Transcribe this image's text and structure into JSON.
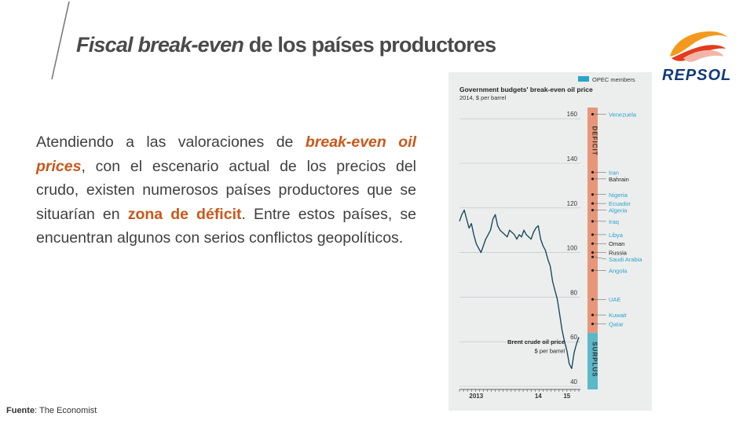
{
  "header": {
    "title_italic": "Fiscal break-even",
    "title_rest": " de los países productores"
  },
  "logo": {
    "wordmark": "REPSOL",
    "colors": {
      "orange": "#f08a1c",
      "red": "#d9251d",
      "blue": "#123a7a"
    }
  },
  "body": {
    "segments": [
      {
        "text": "Atendiendo a las valoraciones de ",
        "style": "normal"
      },
      {
        "text": "break-even oil prices",
        "style": "orange-italic"
      },
      {
        "text": ", con el escenario actual de los precios del crudo, existen numerosos países productores que se situarían en ",
        "style": "normal"
      },
      {
        "text": "zona de déficit",
        "style": "orange"
      },
      {
        "text": ". Entre estos países, se encuentran algunos con serios conflictos geopolíticos.",
        "style": "normal"
      }
    ]
  },
  "source": {
    "label": "Fuente",
    "text": ": The Economist"
  },
  "colors": {
    "title": "#4a4a4a",
    "accent": "#c8581a",
    "deficit": "#e8967a",
    "surplus": "#5bb8c8",
    "opec": "#2ea3c9",
    "line": "#1d4a5a"
  },
  "chart_data": {
    "type": "line",
    "title": "Government budgets' break-even oil price",
    "subtitle": "2014, $ per barrel",
    "legend": "OPEC members",
    "legend_placement": "top-right",
    "ylim": [
      40,
      165
    ],
    "yticks": [
      40,
      60,
      80,
      100,
      120,
      140,
      160
    ],
    "xticks": [
      {
        "label": "2013",
        "t": 0.14
      },
      {
        "label": "14",
        "t": 0.66
      },
      {
        "label": "15",
        "t": 0.9
      }
    ],
    "series": [
      {
        "name": "Brent crude oil price",
        "unit": "$ per barrel",
        "points": [
          [
            0,
            114
          ],
          [
            0.02,
            117
          ],
          [
            0.04,
            119
          ],
          [
            0.06,
            115
          ],
          [
            0.08,
            111
          ],
          [
            0.1,
            113
          ],
          [
            0.12,
            108
          ],
          [
            0.14,
            104
          ],
          [
            0.16,
            102
          ],
          [
            0.18,
            100
          ],
          [
            0.2,
            103
          ],
          [
            0.22,
            106
          ],
          [
            0.24,
            108
          ],
          [
            0.26,
            110
          ],
          [
            0.28,
            115
          ],
          [
            0.3,
            117
          ],
          [
            0.32,
            112
          ],
          [
            0.34,
            110
          ],
          [
            0.36,
            109
          ],
          [
            0.38,
            108
          ],
          [
            0.4,
            107
          ],
          [
            0.42,
            110
          ],
          [
            0.44,
            109
          ],
          [
            0.46,
            108
          ],
          [
            0.48,
            106
          ],
          [
            0.5,
            108
          ],
          [
            0.52,
            107
          ],
          [
            0.54,
            110
          ],
          [
            0.56,
            108
          ],
          [
            0.58,
            107
          ],
          [
            0.6,
            106
          ],
          [
            0.62,
            109
          ],
          [
            0.64,
            111
          ],
          [
            0.66,
            112
          ],
          [
            0.68,
            106
          ],
          [
            0.7,
            103
          ],
          [
            0.72,
            101
          ],
          [
            0.74,
            97
          ],
          [
            0.76,
            94
          ],
          [
            0.78,
            87
          ],
          [
            0.8,
            83
          ],
          [
            0.82,
            79
          ],
          [
            0.84,
            72
          ],
          [
            0.86,
            65
          ],
          [
            0.88,
            60
          ],
          [
            0.9,
            56
          ],
          [
            0.92,
            50
          ],
          [
            0.94,
            48
          ],
          [
            0.96,
            55
          ],
          [
            0.98,
            59
          ],
          [
            1.0,
            62
          ]
        ]
      }
    ],
    "break_even": [
      {
        "country": "Venezuela",
        "value": 162,
        "opec": true
      },
      {
        "country": "Iran",
        "value": 136,
        "opec": true
      },
      {
        "country": "Bahrain",
        "value": 133,
        "opec": false
      },
      {
        "country": "Nigeria",
        "value": 126,
        "opec": true
      },
      {
        "country": "Ecuador",
        "value": 122,
        "opec": true
      },
      {
        "country": "Algeria",
        "value": 119,
        "opec": true
      },
      {
        "country": "Iraq",
        "value": 114,
        "opec": true
      },
      {
        "country": "Libya",
        "value": 108,
        "opec": true
      },
      {
        "country": "Oman",
        "value": 104,
        "opec": false
      },
      {
        "country": "Russia",
        "value": 100,
        "opec": false
      },
      {
        "country": "Saudi Arabia",
        "value": 98,
        "opec": true
      },
      {
        "country": "Angola",
        "value": 92,
        "opec": true
      },
      {
        "country": "UAE",
        "value": 79,
        "opec": true
      },
      {
        "country": "Kuwait",
        "value": 72,
        "opec": true
      },
      {
        "country": "Qatar",
        "value": 68,
        "opec": true
      }
    ],
    "bands": [
      {
        "label": "DEFICIT",
        "from": 64,
        "to": 165
      },
      {
        "label": "SURPLUS",
        "from": 40,
        "to": 64
      }
    ]
  }
}
